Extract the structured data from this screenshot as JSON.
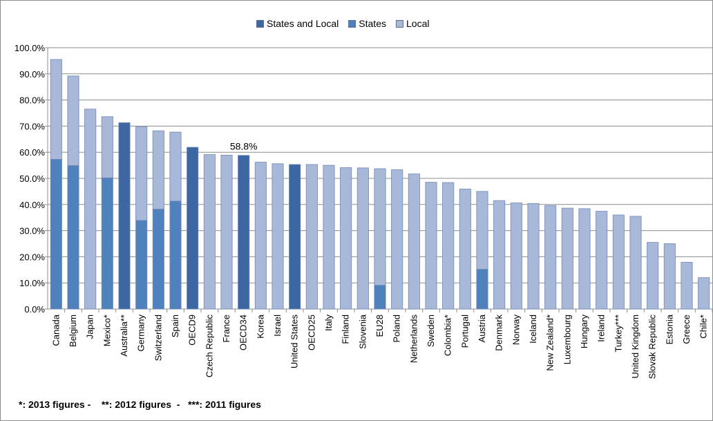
{
  "chart_data": {
    "type": "bar",
    "stacked": true,
    "categories": [
      "Canada",
      "Belgium",
      "Japan",
      "Mexico*",
      "Australia**",
      "Germany",
      "Switzerland",
      "Spain",
      "OECD9",
      "Czech Republic",
      "France",
      "OECD34",
      "Korea",
      "Israel",
      "United States",
      "OECD25",
      "Italy",
      "Finland",
      "Slovenia",
      "EU28",
      "Poland",
      "Netherlands",
      "Sweden",
      "Colombia*",
      "Portugal",
      "Austria",
      "Denmark",
      "Norway",
      "Iceland",
      "New Zealand*",
      "Luxembourg",
      "Hungary",
      "Ireland",
      "Turkey***",
      "United Kingdom",
      "Slovak Republic",
      "Estonia",
      "Greece",
      "Chile*"
    ],
    "series": [
      {
        "name": "States and Local",
        "color": "#3d67a3",
        "values": [
          0,
          0,
          0,
          0,
          71.3,
          0,
          0,
          0,
          61.9,
          0,
          0,
          58.8,
          0,
          0,
          55.3,
          0,
          0,
          0,
          0,
          0,
          0,
          0,
          0,
          0,
          0,
          0,
          0,
          0,
          0,
          0,
          0,
          0,
          0,
          0,
          0,
          0,
          0,
          0,
          0
        ]
      },
      {
        "name": "States",
        "color": "#4f81bd",
        "values": [
          57.3,
          54.9,
          0,
          50.2,
          0,
          33.9,
          38.2,
          41.3,
          0,
          0,
          0,
          0,
          0,
          0,
          0,
          0,
          0,
          0,
          0,
          9.1,
          0,
          0,
          0,
          0,
          0,
          15.2,
          0,
          0,
          0,
          0,
          0,
          0,
          0,
          0,
          0,
          0,
          0,
          0,
          0
        ]
      },
      {
        "name": "Local",
        "color": "#a8b8d8",
        "values": [
          38.2,
          34.3,
          76.5,
          23.4,
          0,
          35.8,
          30.0,
          26.4,
          0,
          59.1,
          58.9,
          0,
          56.2,
          55.6,
          0,
          55.3,
          55.0,
          54.1,
          54.0,
          44.6,
          53.3,
          51.7,
          48.5,
          48.4,
          45.9,
          29.8,
          41.5,
          40.6,
          40.4,
          39.6,
          38.6,
          38.4,
          37.4,
          36.0,
          35.5,
          25.5,
          25.0,
          17.9,
          12.0
        ]
      }
    ],
    "ylim": [
      0,
      100
    ],
    "yticks": [
      "0.0%",
      "10.0%",
      "20.0%",
      "30.0%",
      "40.0%",
      "50.0%",
      "60.0%",
      "70.0%",
      "80.0%",
      "90.0%",
      "100.0%"
    ],
    "annotation": {
      "category": "OECD34",
      "text": "58.8%"
    },
    "grid": true,
    "legend_position": "top",
    "xlabel": "",
    "ylabel": ""
  },
  "footnote": "*: 2013 figures -    **: 2012 figures  -   ***: 2011 figures"
}
